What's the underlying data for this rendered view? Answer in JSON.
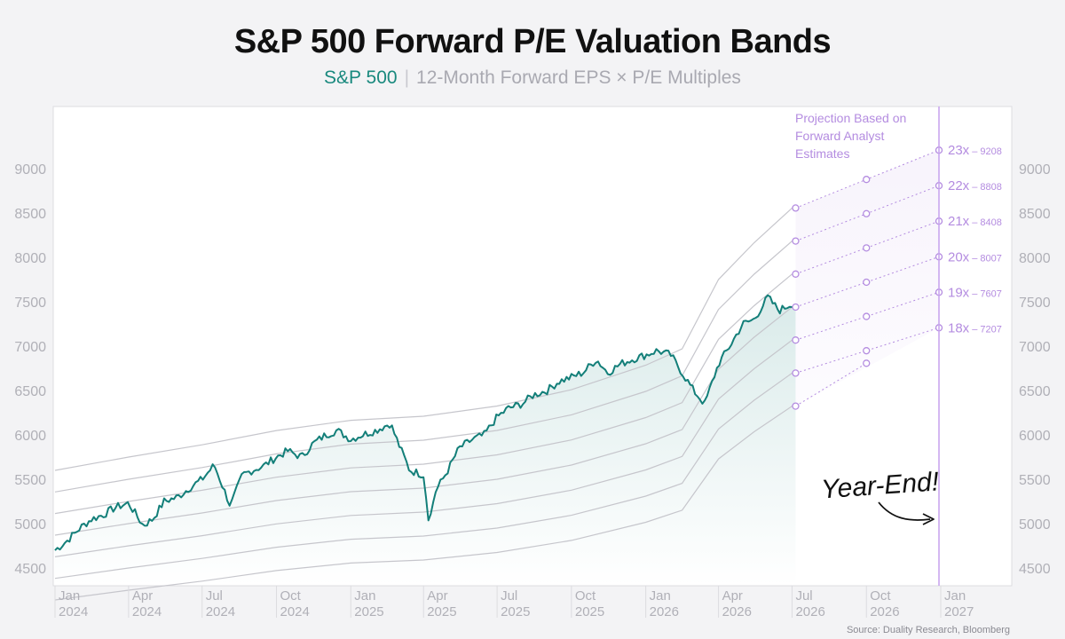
{
  "header": {
    "title": "S&P 500 Forward P/E Valuation Bands",
    "subtitle_series": "S&P 500",
    "subtitle_sep": "|",
    "subtitle_desc": "12-Month Forward EPS × P/E Multiples"
  },
  "source": "Source: Duality Research, Bloomberg",
  "colors": {
    "price_line": "#137f79",
    "band_line": "#c6c6cc",
    "projection": "#b48ce0",
    "year_end_line": "#c9a6ee",
    "background": "#f3f3f5",
    "plot_bg": "#ffffff"
  },
  "chart_data": {
    "type": "line",
    "title": "S&P 500 Forward P/E Valuation Bands",
    "ylim": [
      4300,
      9700
    ],
    "y_ticks": [
      4500,
      5000,
      5500,
      6000,
      6500,
      7000,
      7500,
      8000,
      8500,
      9000
    ],
    "y_axes": [
      "left",
      "right"
    ],
    "grid": false,
    "x_range": [
      "2024-01",
      "2027-01"
    ],
    "x_ticks": [
      {
        "month": "Jan",
        "year": "2024"
      },
      {
        "month": "Apr",
        "year": "2024"
      },
      {
        "month": "Jul",
        "year": "2024"
      },
      {
        "month": "Oct",
        "year": "2024"
      },
      {
        "month": "Jan",
        "year": "2025"
      },
      {
        "month": "Apr",
        "year": "2025"
      },
      {
        "month": "Jul",
        "year": "2025"
      },
      {
        "month": "Oct",
        "year": "2025"
      },
      {
        "month": "Jan",
        "year": "2026"
      },
      {
        "month": "Apr",
        "year": "2026"
      },
      {
        "month": "Jul",
        "year": "2026"
      },
      {
        "month": "Oct",
        "year": "2026"
      },
      {
        "month": "Jan",
        "year": "2027"
      }
    ],
    "price_series": {
      "x": [
        "2024-01-01",
        "2024-01-15",
        "2024-02-01",
        "2024-02-15",
        "2024-03-01",
        "2024-03-15",
        "2024-04-01",
        "2024-04-19",
        "2024-05-01",
        "2024-05-15",
        "2024-06-01",
        "2024-06-15",
        "2024-07-01",
        "2024-07-16",
        "2024-08-05",
        "2024-08-20",
        "2024-09-01",
        "2024-09-15",
        "2024-10-01",
        "2024-10-15",
        "2024-11-01",
        "2024-11-15",
        "2024-12-01",
        "2024-12-15",
        "2025-01-01",
        "2025-01-15",
        "2025-02-01",
        "2025-02-19",
        "2025-03-01",
        "2025-03-15",
        "2025-04-01",
        "2025-04-08",
        "2025-04-15",
        "2025-05-01",
        "2025-05-15",
        "2025-06-01",
        "2025-06-15",
        "2025-07-01",
        "2025-07-15",
        "2025-08-01",
        "2025-08-15",
        "2025-09-01",
        "2025-09-15",
        "2025-10-01",
        "2025-10-15",
        "2025-11-01",
        "2025-11-15",
        "2025-12-01",
        "2025-12-15",
        "2026-01-01",
        "2026-01-15",
        "2026-02-01",
        "2026-02-15",
        "2026-03-01",
        "2026-03-15",
        "2026-04-01",
        "2026-04-15",
        "2026-05-01",
        "2026-05-15",
        "2026-06-01",
        "2026-06-15",
        "2026-07-01"
      ],
      "y": [
        4700,
        4800,
        4950,
        5050,
        5100,
        5180,
        5230,
        4980,
        5050,
        5250,
        5300,
        5400,
        5500,
        5660,
        5200,
        5550,
        5600,
        5650,
        5750,
        5820,
        5750,
        5900,
        6000,
        6050,
        5950,
        6000,
        6050,
        6130,
        5900,
        5600,
        5550,
        5000,
        5350,
        5600,
        5850,
        5950,
        6000,
        6200,
        6300,
        6350,
        6450,
        6500,
        6600,
        6650,
        6700,
        6850,
        6700,
        6800,
        6850,
        6900,
        6950,
        6900,
        6700,
        6500,
        6350,
        6800,
        7000,
        7250,
        7300,
        7550,
        7400,
        7480
      ]
    },
    "bands": [
      {
        "label": "23x",
        "value": 9208
      },
      {
        "label": "22x",
        "value": 8808
      },
      {
        "label": "21x",
        "value": 8408
      },
      {
        "label": "20x",
        "value": 8007
      },
      {
        "label": "19x",
        "value": 7607
      },
      {
        "label": "18x",
        "value": 7207
      }
    ],
    "band_history": {
      "x": [
        "2024-01-01",
        "2024-04-01",
        "2024-07-01",
        "2024-10-01",
        "2025-01-01",
        "2025-04-01",
        "2025-07-01",
        "2025-10-01",
        "2026-01-01",
        "2026-02-15",
        "2026-04-01",
        "2026-05-15",
        "2026-07-01"
      ],
      "forward_eps": [
        243.5,
        250,
        256,
        263,
        268,
        270,
        275,
        283,
        295,
        303,
        337,
        355,
        372
      ]
    },
    "projection_label": "Projection Based on Forward Analyst Estimates",
    "annotation": "Year-End!"
  }
}
